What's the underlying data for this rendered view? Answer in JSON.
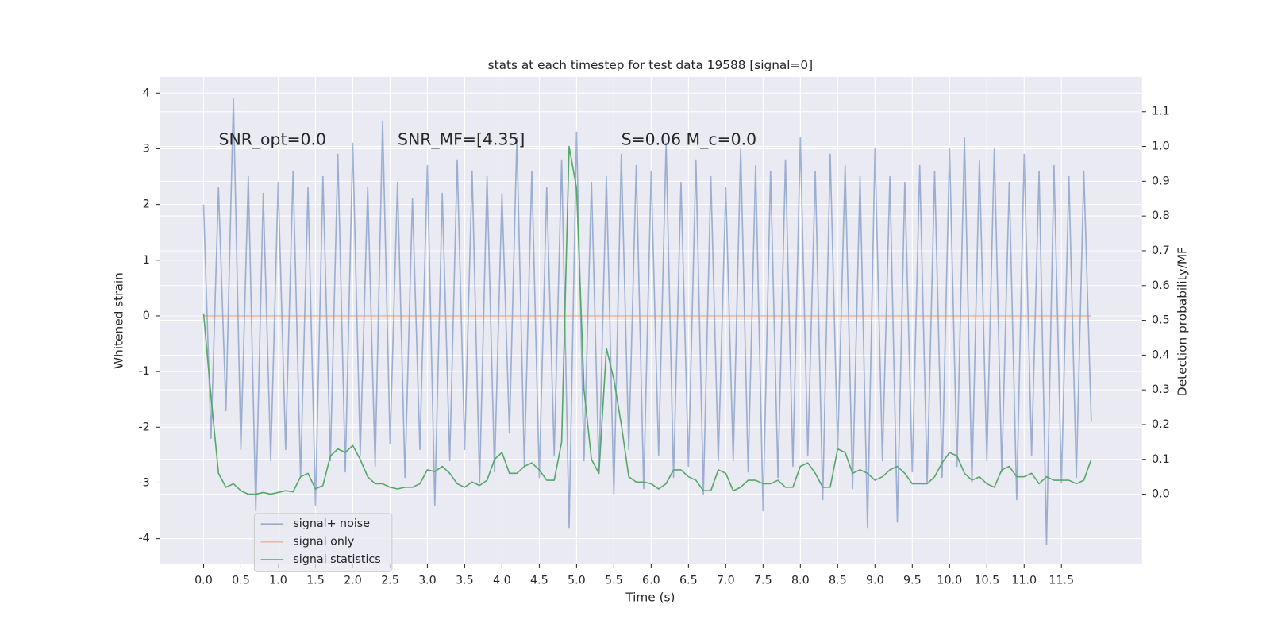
{
  "chart_data": {
    "type": "line",
    "title": "stats at each timestep for test data 19588 [signal=0]",
    "xlabel": "Time (s)",
    "ylabel": "Whitened strain",
    "y2label": "Detection probability/MF",
    "annotations": [
      "SNR_opt=0.0",
      "SNR_MF=[4.35]",
      "S=0.06   M_c=0.0"
    ],
    "x": [
      0.0,
      0.1,
      0.2,
      0.3,
      0.4,
      0.5,
      0.6,
      0.7,
      0.8,
      0.9,
      1.0,
      1.1,
      1.2,
      1.3,
      1.4,
      1.5,
      1.6,
      1.7,
      1.8,
      1.9,
      2.0,
      2.1,
      2.2,
      2.3,
      2.4,
      2.5,
      2.6,
      2.7,
      2.8,
      2.9,
      3.0,
      3.1,
      3.2,
      3.3,
      3.4,
      3.5,
      3.6,
      3.7,
      3.8,
      3.9,
      4.0,
      4.1,
      4.2,
      4.3,
      4.4,
      4.5,
      4.6,
      4.7,
      4.8,
      4.9,
      5.0,
      5.1,
      5.2,
      5.3,
      5.4,
      5.5,
      5.6,
      5.7,
      5.8,
      5.9,
      6.0,
      6.1,
      6.2,
      6.3,
      6.4,
      6.5,
      6.6,
      6.7,
      6.8,
      6.9,
      7.0,
      7.1,
      7.2,
      7.3,
      7.4,
      7.5,
      7.6,
      7.7,
      7.8,
      7.9,
      8.0,
      8.1,
      8.2,
      8.3,
      8.4,
      8.5,
      8.6,
      8.7,
      8.8,
      8.9,
      9.0,
      9.1,
      9.2,
      9.3,
      9.4,
      9.5,
      9.6,
      9.7,
      9.8,
      9.9,
      10.0,
      10.1,
      10.2,
      10.3,
      10.4,
      10.5,
      10.6,
      10.7,
      10.8,
      10.9,
      11.0,
      11.1,
      11.2,
      11.3,
      11.4,
      11.5,
      11.6,
      11.7,
      11.8,
      11.9
    ],
    "series": [
      {
        "name": "signal+ noise",
        "color": "#4c72b0",
        "alpha": 0.5,
        "values": [
          2.0,
          -2.2,
          2.3,
          -1.7,
          3.9,
          -2.4,
          2.5,
          -3.5,
          2.2,
          -2.6,
          2.4,
          -2.4,
          2.6,
          -2.9,
          2.3,
          -3.4,
          2.5,
          -2.6,
          2.9,
          -2.8,
          3.1,
          -2.5,
          2.3,
          -2.7,
          3.5,
          -2.3,
          2.4,
          -2.9,
          2.1,
          -2.4,
          2.7,
          -3.4,
          2.2,
          -2.6,
          2.8,
          -2.4,
          2.6,
          -3.0,
          2.5,
          -2.8,
          2.2,
          -2.1,
          3.2,
          -2.7,
          2.6,
          -2.9,
          2.3,
          -2.5,
          2.8,
          -3.8,
          3.3,
          -2.6,
          2.4,
          -2.8,
          2.5,
          -3.2,
          2.9,
          -2.4,
          2.7,
          -3.1,
          2.6,
          -2.5,
          3.1,
          -2.9,
          2.4,
          -2.7,
          2.8,
          -3.2,
          2.5,
          -2.6,
          2.3,
          -2.6,
          3.0,
          -2.8,
          2.7,
          -3.5,
          2.6,
          -2.9,
          2.8,
          -2.7,
          3.2,
          -2.5,
          2.6,
          -3.3,
          2.9,
          -2.4,
          2.7,
          -3.1,
          2.5,
          -3.8,
          3.0,
          -2.6,
          2.5,
          -3.7,
          2.4,
          -2.8,
          2.7,
          -3.0,
          2.6,
          -2.9,
          3.0,
          -2.7,
          3.2,
          -3.0,
          2.8,
          -2.6,
          3.0,
          -2.8,
          2.4,
          -3.3,
          2.9,
          -2.5,
          2.6,
          -4.1,
          2.7,
          -3.0,
          2.5,
          -2.9,
          2.6,
          -1.9
        ]
      },
      {
        "name": "signal only",
        "color": "#dd8452",
        "alpha": 0.5,
        "x": [
          0.0,
          11.9
        ],
        "values": [
          0,
          0
        ]
      },
      {
        "name": "signal statistics",
        "color": "#55a868",
        "alpha": 1,
        "axis": "y2",
        "values": [
          0.52,
          0.28,
          0.06,
          0.02,
          0.03,
          0.01,
          0.0,
          0.0,
          0.005,
          0.0,
          0.005,
          0.01,
          0.007,
          0.05,
          0.06,
          0.015,
          0.025,
          0.11,
          0.13,
          0.12,
          0.14,
          0.1,
          0.05,
          0.03,
          0.03,
          0.02,
          0.015,
          0.02,
          0.02,
          0.03,
          0.07,
          0.065,
          0.08,
          0.06,
          0.03,
          0.02,
          0.035,
          0.025,
          0.04,
          0.1,
          0.12,
          0.06,
          0.06,
          0.08,
          0.09,
          0.07,
          0.04,
          0.04,
          0.15,
          1.0,
          0.88,
          0.3,
          0.1,
          0.06,
          0.42,
          0.33,
          0.2,
          0.05,
          0.035,
          0.035,
          0.03,
          0.015,
          0.03,
          0.07,
          0.07,
          0.05,
          0.04,
          0.01,
          0.01,
          0.07,
          0.06,
          0.01,
          0.02,
          0.04,
          0.04,
          0.03,
          0.03,
          0.04,
          0.02,
          0.02,
          0.08,
          0.09,
          0.06,
          0.02,
          0.02,
          0.13,
          0.12,
          0.06,
          0.07,
          0.06,
          0.04,
          0.05,
          0.07,
          0.08,
          0.06,
          0.03,
          0.03,
          0.03,
          0.05,
          0.09,
          0.12,
          0.11,
          0.06,
          0.04,
          0.05,
          0.03,
          0.02,
          0.07,
          0.08,
          0.05,
          0.05,
          0.06,
          0.03,
          0.05,
          0.04,
          0.04,
          0.04,
          0.03,
          0.04,
          0.1
        ]
      }
    ],
    "xlim": [
      -0.59,
      12.58
    ],
    "ylim": [
      -4.45,
      4.29
    ],
    "y2lim": [
      -0.2,
      1.2
    ],
    "xticks": [
      {
        "value": 0,
        "label": "0.0"
      },
      0.5,
      {
        "value": 1,
        "label": "1.0"
      },
      1.5,
      {
        "value": 2,
        "label": "2.0"
      },
      2.5,
      {
        "value": 3,
        "label": "3.0"
      },
      3.5,
      {
        "value": 4,
        "label": "4.0"
      },
      4.5,
      {
        "value": 5,
        "label": "5.0"
      },
      5.5,
      {
        "value": 6,
        "label": "6.0"
      },
      6.5,
      {
        "value": 7,
        "label": "7.0"
      },
      7.5,
      {
        "value": 8,
        "label": "8.0"
      },
      8.5,
      {
        "value": 9,
        "label": "9.0"
      },
      9.5,
      {
        "value": 10,
        "label": "10.0"
      },
      10.5,
      {
        "value": 11,
        "label": "11.0"
      },
      11.5
    ],
    "yticks": [
      -4,
      -3,
      -2,
      -1,
      0,
      1,
      2,
      3,
      4
    ],
    "y2ticks": [
      {
        "value": 0,
        "label": "0.0"
      },
      0.1,
      0.2,
      0.3,
      0.4,
      0.5,
      0.6,
      0.7,
      0.8,
      0.9,
      {
        "value": 1,
        "label": "1.0"
      },
      1.1
    ],
    "grid": true,
    "legend": "lower left",
    "background": "#eaeaf2"
  }
}
